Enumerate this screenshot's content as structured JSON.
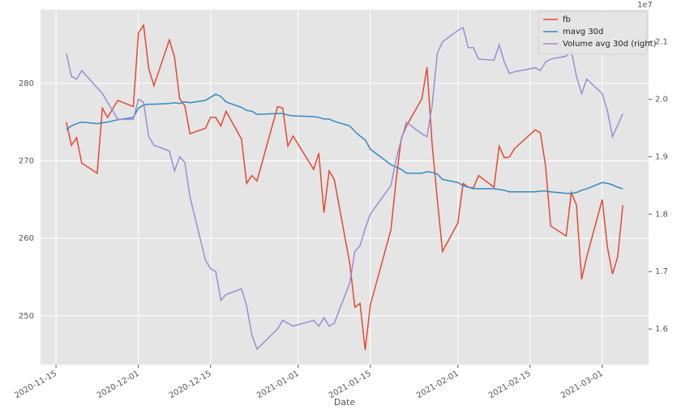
{
  "chart_data": {
    "type": "line",
    "xlabel": "Date",
    "y2_offset_label": "1e7",
    "x": [
      "2020-11-17",
      "2020-11-18",
      "2020-11-19",
      "2020-11-20",
      "2020-11-23",
      "2020-11-24",
      "2020-11-25",
      "2020-11-27",
      "2020-11-30",
      "2020-12-01",
      "2020-12-02",
      "2020-12-03",
      "2020-12-04",
      "2020-12-07",
      "2020-12-08",
      "2020-12-09",
      "2020-12-10",
      "2020-12-11",
      "2020-12-14",
      "2020-12-15",
      "2020-12-16",
      "2020-12-17",
      "2020-12-18",
      "2020-12-21",
      "2020-12-22",
      "2020-12-23",
      "2020-12-24",
      "2020-12-28",
      "2020-12-29",
      "2020-12-30",
      "2020-12-31",
      "2021-01-04",
      "2021-01-05",
      "2021-01-06",
      "2021-01-07",
      "2021-01-08",
      "2021-01-11",
      "2021-01-12",
      "2021-01-13",
      "2021-01-14",
      "2021-01-15",
      "2021-01-19",
      "2021-01-20",
      "2021-01-21",
      "2021-01-22",
      "2021-01-25",
      "2021-01-26",
      "2021-01-27",
      "2021-01-28",
      "2021-01-29",
      "2021-02-01",
      "2021-02-02",
      "2021-02-03",
      "2021-02-04",
      "2021-02-05",
      "2021-02-08",
      "2021-02-09",
      "2021-02-10",
      "2021-02-11",
      "2021-02-12",
      "2021-02-16",
      "2021-02-17",
      "2021-02-18",
      "2021-02-19",
      "2021-02-22",
      "2021-02-23",
      "2021-02-24",
      "2021-02-25",
      "2021-02-26",
      "2021-03-01",
      "2021-03-02",
      "2021-03-03",
      "2021-03-04",
      "2021-03-05"
    ],
    "series": [
      {
        "name": "fb",
        "color": "#e24a33",
        "axis": "y",
        "values": [
          275,
          272,
          273,
          269.7,
          268.4,
          276.8,
          275.6,
          277.8,
          277,
          286.5,
          287.5,
          281.9,
          279.7,
          285.6,
          283.4,
          278,
          277.1,
          273.5,
          274.2,
          275.6,
          275.6,
          274.5,
          276.4,
          272.8,
          267.1,
          268.1,
          267.4,
          277,
          276.8,
          271.9,
          273.2,
          268.9,
          271,
          263.3,
          268.7,
          267.6,
          256.8,
          251.1,
          251.6,
          245.6,
          251.4,
          261.1,
          267.5,
          272.9,
          274.5,
          278,
          282.1,
          272.1,
          265,
          258.3,
          262,
          267.1,
          266.6,
          266.5,
          268.1,
          266.6,
          271.9,
          270.4,
          270.5,
          271.6,
          274,
          273.6,
          269.4,
          261.6,
          260.3,
          265.9,
          264.3,
          254.7,
          257.6,
          265,
          258.9,
          255.4,
          257.6,
          264.3
        ]
      },
      {
        "name": "mavg 30d",
        "color": "#348abd",
        "axis": "y",
        "values": [
          274,
          274.5,
          274.8,
          275,
          274.8,
          274.9,
          275,
          275.3,
          275.6,
          276.8,
          277.2,
          277.3,
          277.3,
          277.4,
          277.5,
          277.4,
          277.6,
          277.5,
          277.8,
          278.2,
          278.6,
          278.3,
          277.6,
          276.9,
          276.5,
          276.4,
          276,
          276.1,
          276.1,
          275.9,
          275.8,
          275.7,
          275.6,
          275.4,
          275.4,
          275.1,
          274.5,
          273.8,
          273.2,
          272.7,
          271.5,
          269.5,
          269.2,
          268.9,
          268.4,
          268.4,
          268.6,
          268.5,
          268.3,
          267.6,
          267.2,
          266.8,
          266.6,
          266.4,
          266.4,
          266.4,
          266.3,
          266.2,
          266,
          266,
          266,
          266.1,
          266.1,
          266,
          265.8,
          265.8,
          265.9,
          266.2,
          266.4,
          267.2,
          267.1,
          266.9,
          266.6,
          266.4
        ]
      },
      {
        "name": "Volume avg 30d (right)",
        "color": "#988ed5",
        "axis": "y2",
        "values": [
          2.08,
          2.04,
          2.035,
          2.05,
          2.02,
          2.01,
          1.995,
          1.965,
          1.965,
          2,
          1.995,
          1.935,
          1.92,
          1.91,
          1.875,
          1.9,
          1.89,
          1.83,
          1.72,
          1.705,
          1.7,
          1.65,
          1.66,
          1.67,
          1.64,
          1.59,
          1.565,
          1.6,
          1.615,
          1.61,
          1.605,
          1.615,
          1.605,
          1.62,
          1.605,
          1.61,
          1.68,
          1.735,
          1.745,
          1.775,
          1.8,
          1.85,
          1.895,
          1.93,
          1.96,
          1.94,
          1.935,
          1.99,
          2.08,
          2.1,
          2.12,
          2.125,
          2.09,
          2.09,
          2.07,
          2.068,
          2.095,
          2.065,
          2.045,
          2.048,
          2.055,
          2.05,
          2.065,
          2.07,
          2.075,
          2.085,
          2.04,
          2.01,
          2.035,
          2.01,
          1.98,
          1.935,
          1.955,
          1.975
        ]
      }
    ],
    "xlim": [
      "2020-11-12",
      "2021-03-10"
    ],
    "xticks": [
      "2020-11-15",
      "2020-12-01",
      "2020-12-15",
      "2021-01-01",
      "2021-01-15",
      "2021-02-01",
      "2021-02-15",
      "2021-03-01"
    ],
    "ylim": [
      243.7,
      289.5
    ],
    "yticks": [
      250,
      260,
      270,
      280
    ],
    "y2lim": [
      1.538,
      2.156
    ],
    "y2ticks": [
      1.6,
      1.7,
      1.8,
      1.9,
      {
        "value": 2,
        "label": "2.0"
      },
      2.1
    ],
    "grid": true,
    "legend": "upper right"
  }
}
